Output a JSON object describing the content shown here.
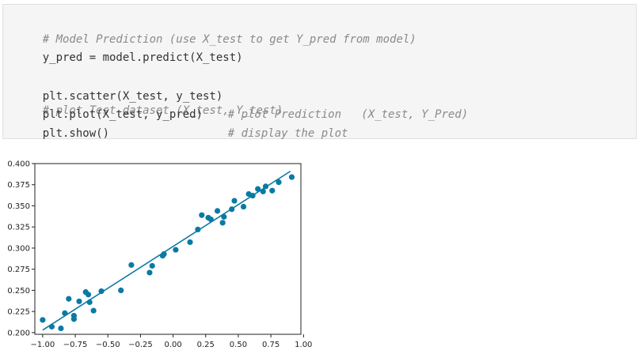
{
  "code_cell": {
    "comment_line": "# Model Prediction (use X_test to get Y_pred from model)",
    "predict_line": "y_pred = model.predict(X_test)",
    "scatter_code": "plt.scatter(X_test, y_test)",
    "scatter_comment": "# plot Test dataset (X_test, Y_test)",
    "plot_code": "plt.plot(X_test, y_pred)",
    "plot_comment": "# plot Prediction   (X_test, Y_Pred)",
    "show_code": "plt.show()",
    "show_comment": "# display the plot"
  },
  "chart_data": {
    "type": "scatter",
    "xlim": [
      -1.06,
      0.98
    ],
    "ylim": [
      0.198,
      0.4
    ],
    "xticks": [
      -1.0,
      -0.75,
      -0.5,
      -0.25,
      0.0,
      0.25,
      0.5,
      0.75,
      1.0
    ],
    "xtick_labels": [
      "−1.00",
      "−0.75",
      "−0.50",
      "−0.25",
      "0.00",
      "0.25",
      "0.50",
      "0.75",
      "1.00"
    ],
    "yticks": [
      0.2,
      0.225,
      0.25,
      0.275,
      0.3,
      0.325,
      0.35,
      0.375,
      0.4
    ],
    "ytick_labels": [
      "0.200",
      "0.225",
      "0.250",
      "0.275",
      "0.300",
      "0.325",
      "0.350",
      "0.375",
      "0.400"
    ],
    "grid": false,
    "color": "#0a7aa3",
    "series": [
      {
        "kind": "scatter",
        "x": [
          -1.0,
          -0.93,
          -0.86,
          -0.83,
          -0.8,
          -0.76,
          -0.76,
          -0.72,
          -0.67,
          -0.65,
          -0.64,
          -0.61,
          -0.55,
          -0.4,
          -0.32,
          -0.18,
          -0.16,
          -0.08,
          -0.07,
          0.02,
          0.13,
          0.19,
          0.22,
          0.27,
          0.29,
          0.34,
          0.38,
          0.39,
          0.45,
          0.47,
          0.54,
          0.58,
          0.61,
          0.65,
          0.69,
          0.71,
          0.76,
          0.81,
          0.91
        ],
        "y": [
          0.215,
          0.207,
          0.205,
          0.223,
          0.24,
          0.216,
          0.22,
          0.237,
          0.248,
          0.245,
          0.236,
          0.226,
          0.249,
          0.25,
          0.28,
          0.271,
          0.279,
          0.291,
          0.293,
          0.298,
          0.307,
          0.322,
          0.339,
          0.336,
          0.334,
          0.344,
          0.33,
          0.337,
          0.346,
          0.356,
          0.349,
          0.364,
          0.362,
          0.37,
          0.367,
          0.373,
          0.368,
          0.378,
          0.384
        ]
      },
      {
        "kind": "line",
        "x": [
          -1.0,
          0.9
        ],
        "y": [
          0.203,
          0.391
        ]
      }
    ]
  }
}
